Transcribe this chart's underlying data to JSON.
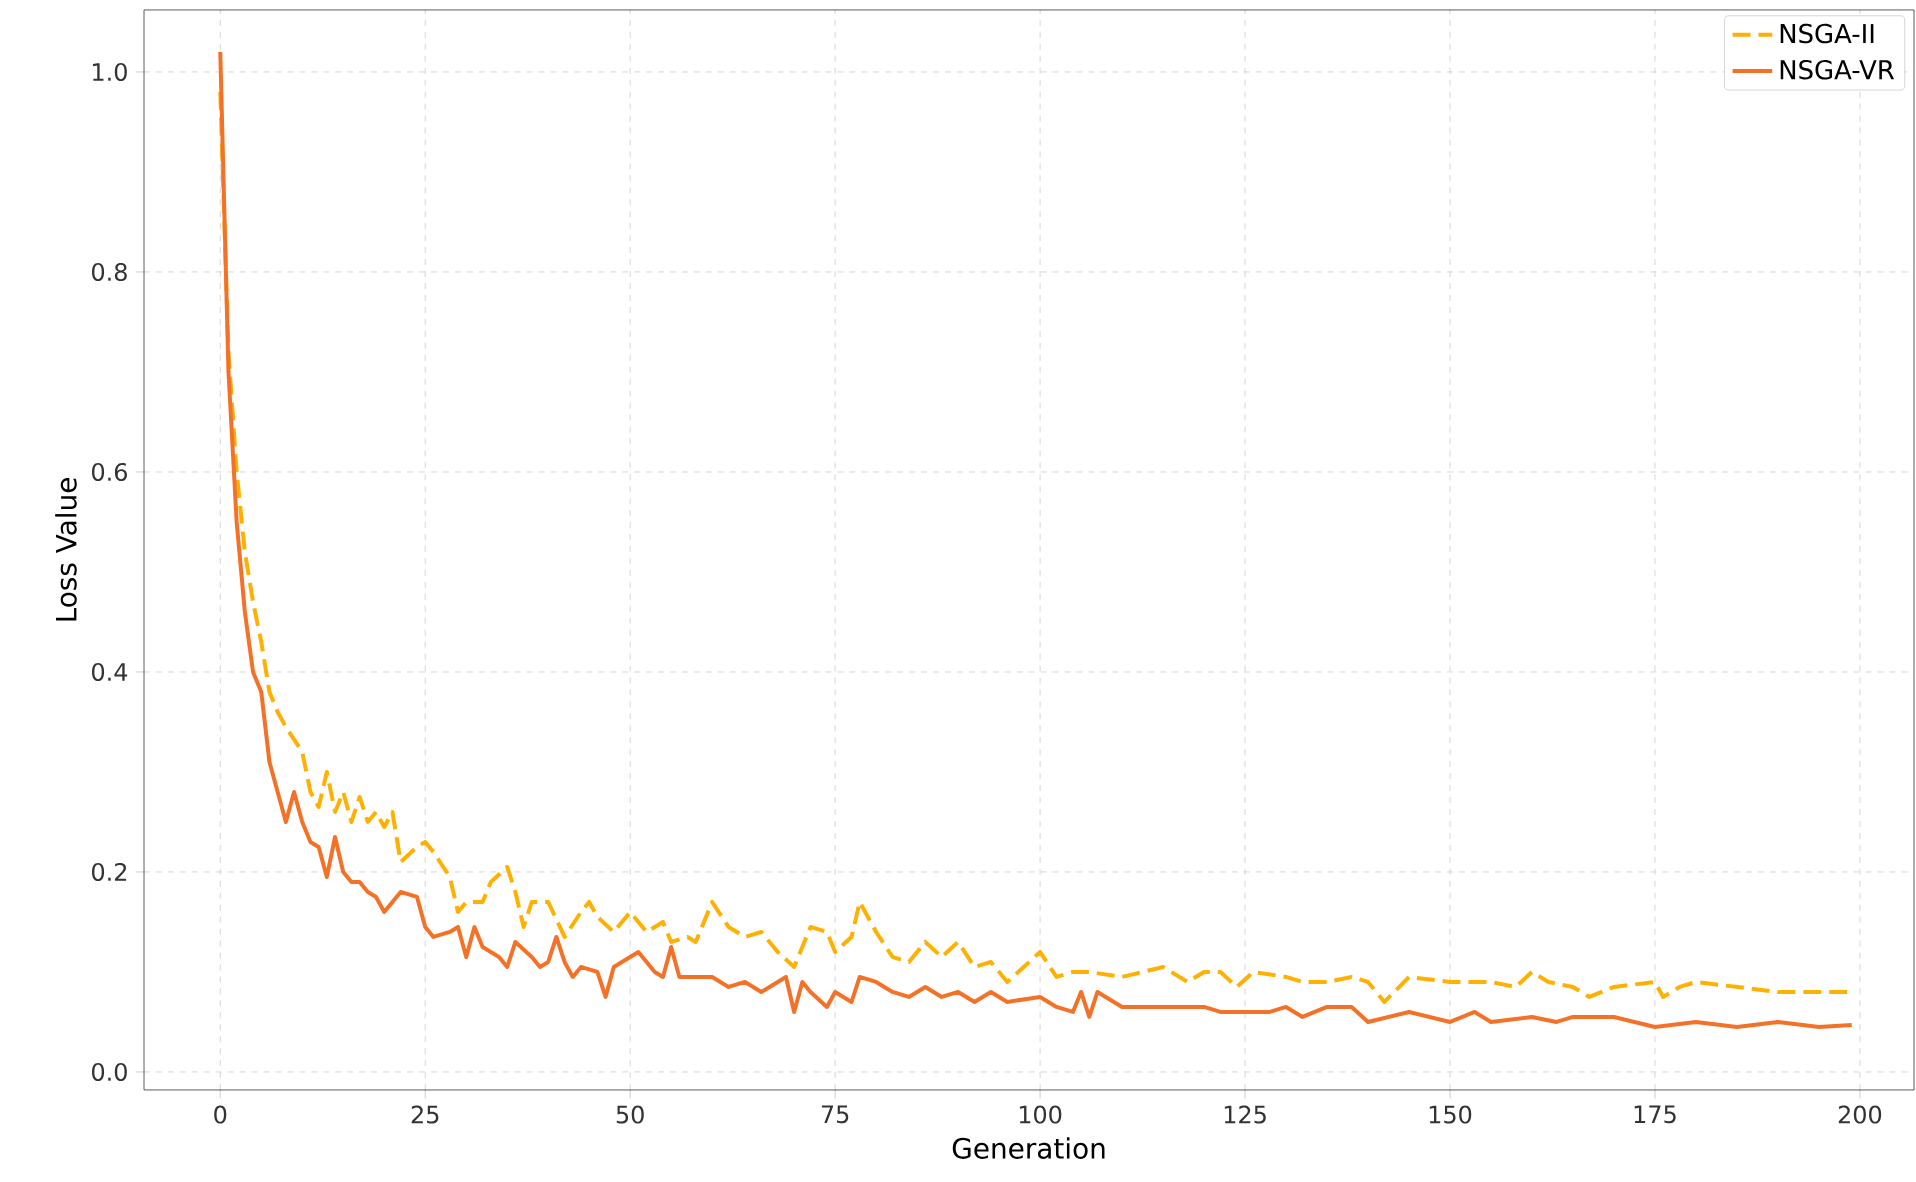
{
  "chart_data": {
    "type": "line",
    "xlabel": "Generation",
    "ylabel": "Loss Value",
    "xlim": [
      -9.3,
      206.6
    ],
    "ylim": [
      -0.018,
      1.062
    ],
    "xticks": [
      0,
      25,
      50,
      75,
      100,
      125,
      150,
      175,
      200
    ],
    "yticks": [
      {
        "value": 0,
        "label": "0.0"
      },
      {
        "value": 0.2,
        "label": "0.2"
      },
      {
        "value": 0.4,
        "label": "0.4"
      },
      {
        "value": 0.6,
        "label": "0.6"
      },
      {
        "value": 0.8,
        "label": "0.8"
      },
      {
        "value": 1.0,
        "label": "1.0"
      }
    ],
    "grid": true,
    "legend": "top right",
    "series": [
      {
        "name": "NSGA-II",
        "color": "#ffb000",
        "line_style": "dashed",
        "x": [
          0,
          1,
          2,
          3,
          4,
          5,
          6,
          7,
          8,
          10,
          11,
          12,
          13,
          14,
          15,
          16,
          17,
          18,
          19,
          20,
          21,
          22,
          24,
          25,
          26,
          28,
          29,
          30,
          32,
          33,
          35,
          36,
          37,
          38,
          40,
          42,
          44,
          45,
          46,
          48,
          50,
          52,
          54,
          55,
          57,
          58,
          60,
          62,
          64,
          66,
          68,
          70,
          72,
          74,
          75,
          77,
          78,
          80,
          82,
          84,
          86,
          88,
          90,
          92,
          94,
          96,
          100,
          102,
          104,
          106,
          110,
          115,
          118,
          120,
          122,
          124,
          126,
          130,
          132,
          135,
          138,
          140,
          142,
          145,
          150,
          155,
          158,
          160,
          162,
          165,
          167,
          170,
          175,
          176,
          178,
          180,
          185,
          190,
          195,
          199
        ],
        "values": [
          0.98,
          0.72,
          0.6,
          0.52,
          0.47,
          0.43,
          0.38,
          0.36,
          0.345,
          0.32,
          0.28,
          0.265,
          0.3,
          0.26,
          0.28,
          0.25,
          0.275,
          0.25,
          0.26,
          0.245,
          0.26,
          0.21,
          0.225,
          0.23,
          0.22,
          0.195,
          0.16,
          0.17,
          0.17,
          0.19,
          0.205,
          0.18,
          0.145,
          0.17,
          0.17,
          0.135,
          0.16,
          0.17,
          0.155,
          0.14,
          0.16,
          0.14,
          0.15,
          0.13,
          0.135,
          0.13,
          0.17,
          0.145,
          0.135,
          0.14,
          0.12,
          0.105,
          0.145,
          0.14,
          0.12,
          0.135,
          0.17,
          0.14,
          0.115,
          0.11,
          0.13,
          0.115,
          0.13,
          0.105,
          0.11,
          0.09,
          0.12,
          0.095,
          0.1,
          0.1,
          0.095,
          0.105,
          0.09,
          0.1,
          0.1,
          0.085,
          0.1,
          0.095,
          0.09,
          0.09,
          0.095,
          0.09,
          0.07,
          0.095,
          0.09,
          0.09,
          0.085,
          0.1,
          0.09,
          0.085,
          0.075,
          0.085,
          0.09,
          0.075,
          0.085,
          0.09,
          0.085,
          0.08,
          0.08,
          0.08
        ]
      },
      {
        "name": "NSGA-VR",
        "color": "#f47228",
        "line_style": "solid",
        "x": [
          0,
          1,
          2,
          3,
          4,
          5,
          6,
          7,
          8,
          9,
          10,
          11,
          12,
          13,
          14,
          15,
          16,
          17,
          18,
          19,
          20,
          22,
          24,
          25,
          26,
          28,
          29,
          30,
          31,
          32,
          34,
          35,
          36,
          38,
          39,
          40,
          41,
          42,
          43,
          44,
          46,
          47,
          48,
          50,
          51,
          53,
          54,
          55,
          56,
          60,
          62,
          64,
          66,
          68,
          69,
          70,
          71,
          72,
          74,
          75,
          77,
          78,
          80,
          82,
          84,
          86,
          88,
          90,
          92,
          94,
          96,
          100,
          102,
          104,
          105,
          106,
          107,
          110,
          115,
          120,
          122,
          125,
          128,
          130,
          132,
          135,
          138,
          140,
          145,
          150,
          153,
          155,
          160,
          163,
          165,
          170,
          175,
          180,
          185,
          190,
          195,
          199
        ],
        "values": [
          1.02,
          0.7,
          0.55,
          0.46,
          0.4,
          0.38,
          0.31,
          0.28,
          0.25,
          0.28,
          0.25,
          0.23,
          0.225,
          0.195,
          0.235,
          0.2,
          0.19,
          0.19,
          0.18,
          0.175,
          0.16,
          0.18,
          0.175,
          0.145,
          0.135,
          0.14,
          0.145,
          0.115,
          0.145,
          0.125,
          0.115,
          0.105,
          0.13,
          0.115,
          0.105,
          0.11,
          0.135,
          0.11,
          0.095,
          0.105,
          0.1,
          0.075,
          0.105,
          0.115,
          0.12,
          0.1,
          0.095,
          0.125,
          0.095,
          0.095,
          0.085,
          0.09,
          0.08,
          0.09,
          0.095,
          0.06,
          0.09,
          0.08,
          0.065,
          0.08,
          0.07,
          0.095,
          0.09,
          0.08,
          0.075,
          0.085,
          0.075,
          0.08,
          0.07,
          0.08,
          0.07,
          0.075,
          0.065,
          0.06,
          0.08,
          0.055,
          0.08,
          0.065,
          0.065,
          0.065,
          0.06,
          0.06,
          0.06,
          0.065,
          0.055,
          0.065,
          0.065,
          0.05,
          0.06,
          0.05,
          0.06,
          0.05,
          0.055,
          0.05,
          0.055,
          0.055,
          0.045,
          0.05,
          0.045,
          0.05,
          0.045,
          0.047
        ]
      }
    ]
  }
}
